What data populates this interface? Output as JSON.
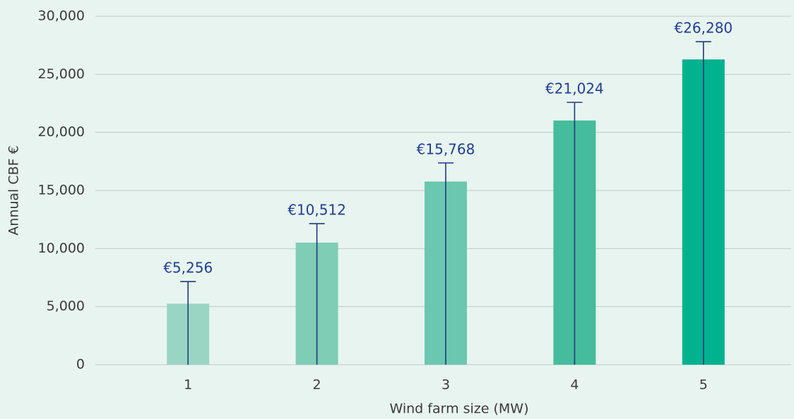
{
  "chart_data": {
    "type": "bar",
    "categories": [
      "1",
      "2",
      "3",
      "4",
      "5"
    ],
    "values": [
      5256,
      10512,
      15768,
      21024,
      26280
    ],
    "value_labels": [
      "€5,256",
      "€10,512",
      "€15,768",
      "€21,024",
      "€26,280"
    ],
    "error": [
      1900,
      1630,
      1600,
      1560,
      1530
    ],
    "colors": [
      "#9ad5c4",
      "#7fcdb5",
      "#6bc7b0",
      "#45bc9b",
      "#00b28e"
    ],
    "error_color": "#1f3a7a",
    "x_label": "Wind farm size (MW)",
    "y_label": "Annual CBF €",
    "ylim": [
      0,
      30000
    ],
    "yticks": [
      {
        "value": 0,
        "label": "0"
      },
      {
        "value": 5000,
        "label": "5,000"
      },
      {
        "value": 10000,
        "label": "10,000"
      },
      {
        "value": 15000,
        "label": "15,000"
      },
      {
        "value": 20000,
        "label": "20,000"
      },
      {
        "value": 25000,
        "label": "25,000"
      },
      {
        "value": 30000,
        "label": "30,000"
      }
    ],
    "grid": true
  }
}
